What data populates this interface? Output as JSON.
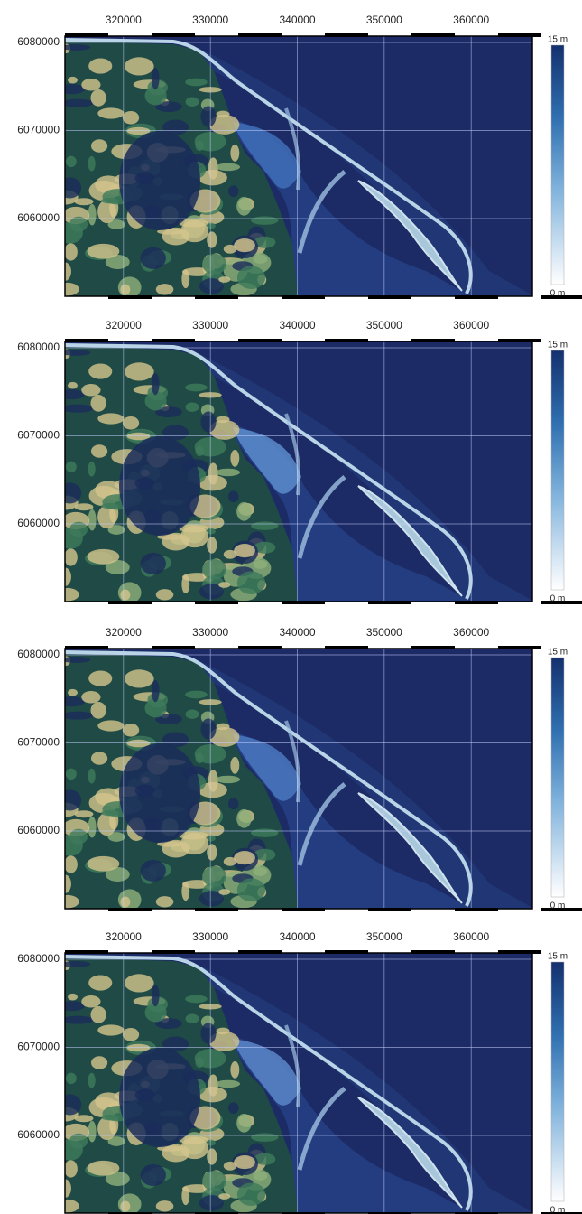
{
  "panels": [
    {
      "xticks": [
        320000,
        330000,
        340000,
        350000,
        360000
      ],
      "yticks": [
        6080000,
        6070000,
        6060000
      ],
      "xlim": [
        313270,
        367040
      ],
      "ylim": [
        6051180,
        6080720
      ],
      "colorbar": {
        "top_label": "15 m",
        "bottom_label": "0 m"
      }
    },
    {
      "xticks": [
        320000,
        330000,
        340000,
        350000,
        360000
      ],
      "yticks": [
        6080000,
        6070000,
        6060000
      ],
      "xlim": [
        313270,
        367040
      ],
      "ylim": [
        6051180,
        6080720
      ],
      "colorbar": {
        "top_label": "15 m",
        "bottom_label": "0 m"
      }
    },
    {
      "xticks": [
        320000,
        330000,
        340000,
        350000,
        360000
      ],
      "yticks": [
        6080000,
        6070000,
        6060000
      ],
      "xlim": [
        313270,
        367040
      ],
      "ylim": [
        6051180,
        6080720
      ],
      "colorbar": {
        "top_label": "15 m",
        "bottom_label": "0 m"
      }
    },
    {
      "xticks": [
        320000,
        330000,
        340000,
        350000,
        360000
      ],
      "yticks": [
        6080000,
        6070000,
        6060000
      ],
      "xlim": [
        313270,
        367040
      ],
      "ylim": [
        6051180,
        6080720
      ],
      "colorbar": {
        "top_label": "15 m",
        "bottom_label": "0 m"
      }
    }
  ]
}
